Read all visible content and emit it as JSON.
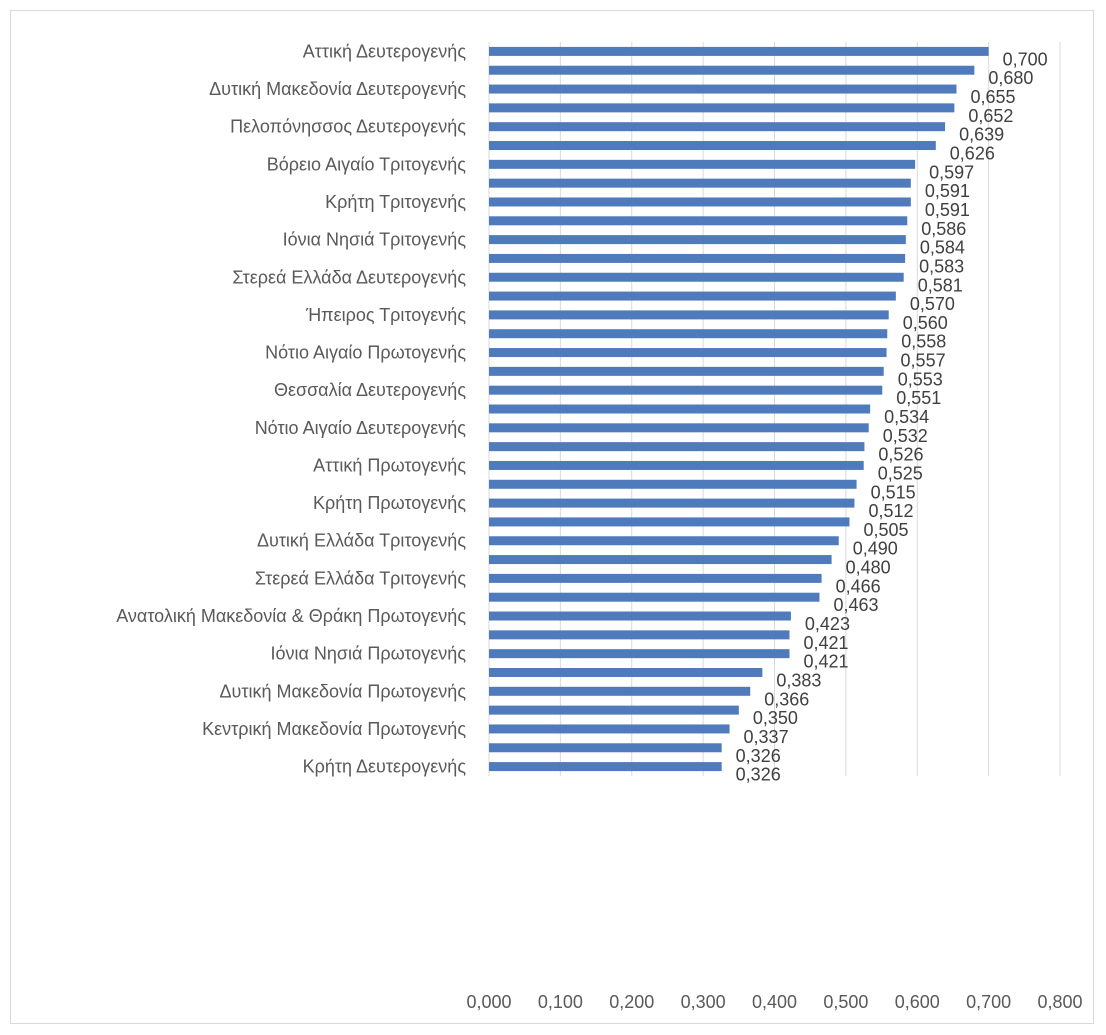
{
  "chart_data": {
    "type": "bar",
    "orientation": "horizontal",
    "title": "",
    "xlabel": "",
    "ylabel": "",
    "xlim": [
      0,
      0.8
    ],
    "x_ticks": [
      "0,000",
      "0,100",
      "0,200",
      "0,300",
      "0,400",
      "0,500",
      "0,600",
      "0,700",
      "0,800"
    ],
    "grid": true,
    "bar_color": "#4f7bbd",
    "categories": [
      "Αττική Δευτερογενής",
      "",
      "Δυτική Μακεδονία Δευτερογενής",
      "",
      "Πελοπόνησσος Δευτερογενής",
      "",
      "Βόρειο Αιγαίο Τριτογενής",
      "",
      "Κρήτη Τριτογενής",
      "",
      "Ιόνια Νησιά Τριτογενής",
      "",
      "Στερεά Ελλάδα Δευτερογενής",
      "",
      "Ήπειρος Τριτογενής",
      "",
      "Νότιο Αιγαίο Πρωτογενής",
      "",
      "Θεσσαλία Δευτερογενής",
      "",
      "Νότιο Αιγαίο Δευτερογενής",
      "",
      "Αττική Πρωτογενής",
      "",
      "Κρήτη Πρωτογενής",
      "",
      "Δυτική Ελλάδα  Τριτογενής",
      "",
      "Στερεά Ελλάδα Τριτογενής",
      "",
      "Ανατολική Μακεδονία & Θράκη Πρωτογενής",
      "",
      "Ιόνια Νησιά Πρωτογενής",
      "",
      "Δυτική Μακεδονία Πρωτογενής",
      "",
      "Κεντρική Μακεδονία Πρωτογενής",
      "",
      "Κρήτη Δευτερογενής"
    ],
    "values": [
      0.7,
      0.68,
      0.655,
      0.652,
      0.639,
      0.626,
      0.597,
      0.591,
      0.591,
      0.586,
      0.584,
      0.583,
      0.581,
      0.57,
      0.56,
      0.558,
      0.557,
      0.553,
      0.551,
      0.534,
      0.532,
      0.526,
      0.525,
      0.515,
      0.512,
      0.505,
      0.49,
      0.48,
      0.466,
      0.463,
      0.423,
      0.421,
      0.421,
      0.383,
      0.366,
      0.35,
      0.337,
      0.326,
      0.326
    ],
    "data_labels": [
      "0,700",
      "0,680",
      "0,655",
      "0,652",
      "0,639",
      "0,626",
      "0,597",
      "0,591",
      "0,591",
      "0,586",
      "0,584",
      "0,583",
      "0,581",
      "0,570",
      "0,560",
      "0,558",
      "0,557",
      "0,553",
      "0,551",
      "0,534",
      "0,532",
      "0,526",
      "0,525",
      "0,515",
      "0,512",
      "0,505",
      "0,490",
      "0,480",
      "0,466",
      "0,463",
      "0,423",
      "0,421",
      "0,421",
      "0,383",
      "0,366",
      "0,350",
      "0,337",
      "0,326",
      "0,326"
    ]
  }
}
